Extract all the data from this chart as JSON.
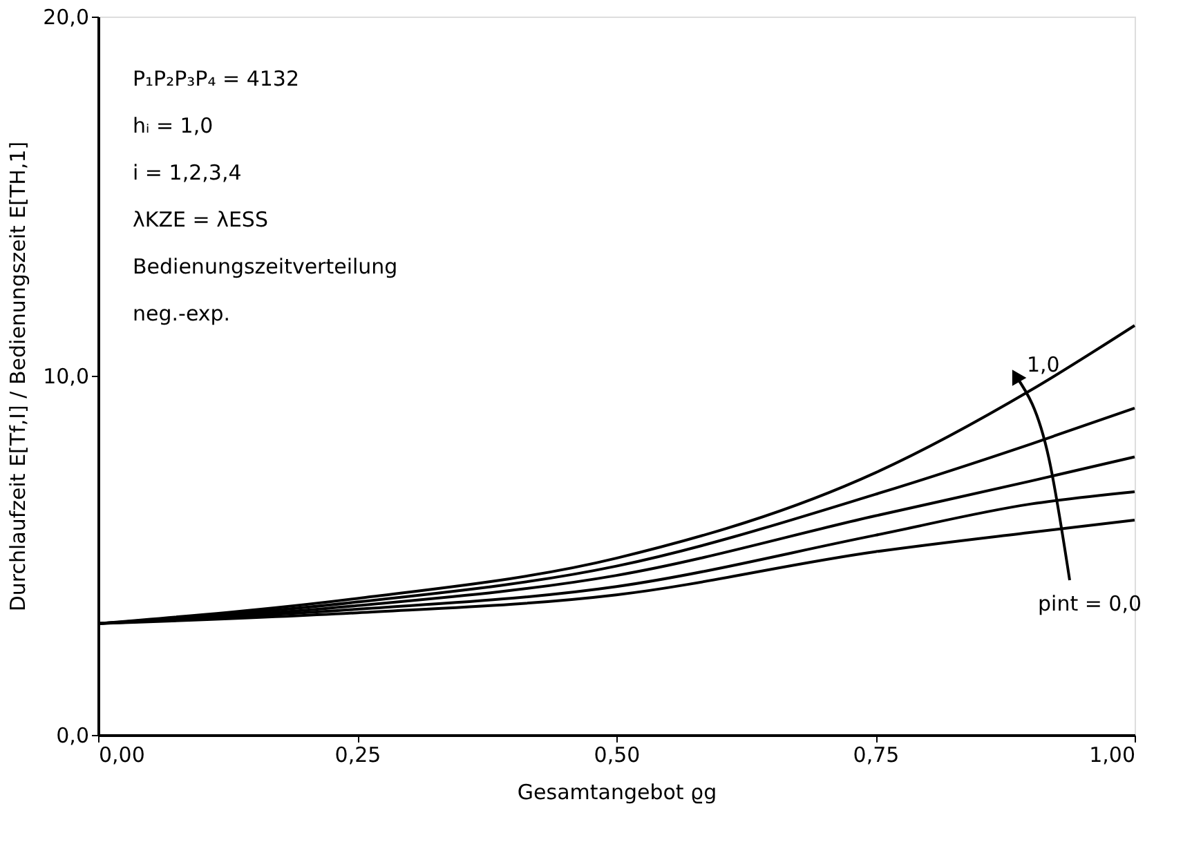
{
  "chart_data": {
    "type": "line",
    "xlabel": "Gesamtangebot ϱg",
    "ylabel": "Durchlaufzeit E[Tf,I] / Bedienungszeit E[TH,1]",
    "x": [
      0.0,
      0.25,
      0.5,
      0.75,
      0.9,
      1.0
    ],
    "series": [
      {
        "color": "#000000",
        "values": [
          3.1,
          3.8,
          4.92,
          7.3,
          9.6,
          11.4
        ]
      },
      {
        "color": "#000000",
        "values": [
          3.1,
          3.7,
          4.7,
          6.7,
          8.1,
          9.1
        ]
      },
      {
        "color": "#000000",
        "values": [
          3.1,
          3.6,
          4.44,
          6.1,
          7.07,
          7.74
        ]
      },
      {
        "color": "#000000",
        "values": [
          3.1,
          3.5,
          4.13,
          5.56,
          6.43,
          6.77
        ]
      },
      {
        "color": "#000000",
        "values": [
          3.1,
          3.4,
          3.9,
          5.1,
          5.64,
          5.98
        ]
      }
    ],
    "xlim": [
      0,
      1
    ],
    "ylim": [
      0,
      20
    ],
    "xticks": [
      {
        "value": 0,
        "label": "0,00"
      },
      {
        "value": 0.25,
        "label": "0,25"
      },
      {
        "value": 0.5,
        "label": "0,50"
      },
      {
        "value": 0.75,
        "label": "0,75"
      },
      {
        "value": 1,
        "label": "1,00"
      }
    ],
    "yticks": [
      {
        "value": 0,
        "label": "0,0"
      },
      {
        "value": 10,
        "label": "10,0"
      },
      {
        "value": 20,
        "label": "20,0"
      }
    ],
    "grid": false,
    "legend": false,
    "marker": "none",
    "line_style": "solid",
    "annotations": [
      "P₁P₂P₃P₄ = 4132",
      "hᵢ = 1,0",
      "i = 1,2,3,4",
      "λKZE = λESS",
      "Bedienungszeitverteilung",
      "neg.-exp.",
      "1,0",
      "pint = 0,0"
    ]
  }
}
